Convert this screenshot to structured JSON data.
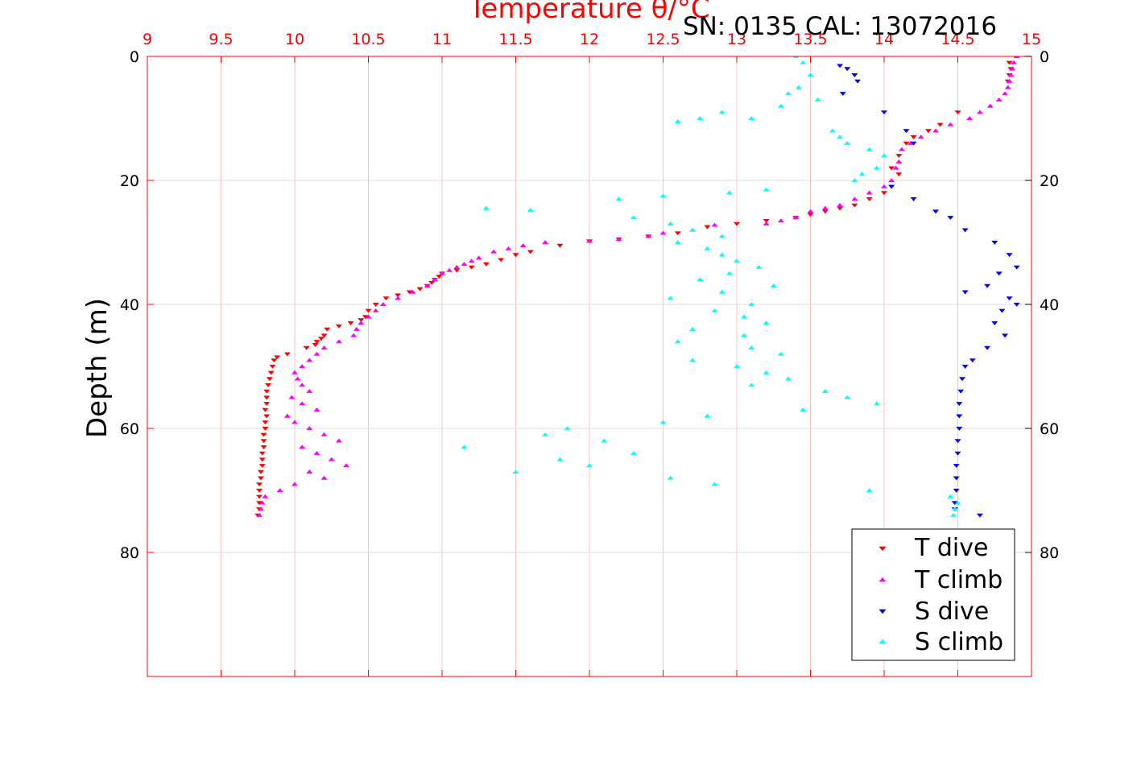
{
  "chart_data": {
    "type": "scatter",
    "title": "Temperature θ/°C",
    "annotation": "SN: 0135  CAL: 13072016",
    "xlabel": "Temperature θ/°C",
    "ylabel": "Depth (m)",
    "xlim": [
      9,
      15
    ],
    "ylim": [
      0,
      100
    ],
    "y_reversed": true,
    "x_ticks": [
      "9",
      "9.5",
      "10",
      "10.5",
      "11",
      "11.5",
      "12",
      "12.5",
      "13",
      "13.5",
      "14",
      "14.5",
      "15"
    ],
    "y_ticks_left": [
      "0",
      "20",
      "40",
      "60",
      "80"
    ],
    "y_ticks_right": [
      "0",
      "20",
      "40",
      "60",
      "80"
    ],
    "grid": true,
    "legend_position": "bottom-right",
    "colors": {
      "T dive": "#ff0000",
      "T climb": "#ff00ff",
      "S dive": "#0000ff",
      "S climb": "#00ffff",
      "axis": "#ff0000"
    },
    "series": [
      {
        "name": "T dive",
        "marker": "triangle-down",
        "points": [
          [
            14.85,
            1
          ],
          [
            14.86,
            2
          ],
          [
            14.85,
            3
          ],
          [
            14.84,
            4
          ],
          [
            14.5,
            9
          ],
          [
            14.38,
            11
          ],
          [
            14.3,
            12
          ],
          [
            14.2,
            13
          ],
          [
            14.15,
            14
          ],
          [
            14.1,
            16
          ],
          [
            14.05,
            18
          ],
          [
            14.1,
            19
          ],
          [
            14.05,
            21
          ],
          [
            14.0,
            22
          ],
          [
            13.9,
            23
          ],
          [
            13.8,
            24
          ],
          [
            13.7,
            24.5
          ],
          [
            13.6,
            25
          ],
          [
            13.5,
            25.5
          ],
          [
            13.4,
            26
          ],
          [
            13.2,
            26.5
          ],
          [
            13.0,
            27
          ],
          [
            12.8,
            27.5
          ],
          [
            12.6,
            28.5
          ],
          [
            12.4,
            29
          ],
          [
            12.2,
            29.5
          ],
          [
            12.0,
            29.8
          ],
          [
            11.8,
            30.5
          ],
          [
            11.6,
            31.5
          ],
          [
            11.5,
            32
          ],
          [
            11.4,
            32.8
          ],
          [
            11.3,
            33.5
          ],
          [
            11.2,
            34
          ],
          [
            11.1,
            34.5
          ],
          [
            11.0,
            35
          ],
          [
            10.98,
            35.5
          ],
          [
            10.95,
            36
          ],
          [
            10.93,
            36.5
          ],
          [
            10.9,
            37
          ],
          [
            10.85,
            37.5
          ],
          [
            10.78,
            38
          ],
          [
            10.7,
            38.5
          ],
          [
            10.62,
            39
          ],
          [
            10.55,
            40
          ],
          [
            10.5,
            41
          ],
          [
            10.48,
            42
          ],
          [
            10.45,
            42.5
          ],
          [
            10.38,
            43
          ],
          [
            10.3,
            43.5
          ],
          [
            10.22,
            44
          ],
          [
            10.2,
            45
          ],
          [
            10.18,
            45.5
          ],
          [
            10.15,
            46
          ],
          [
            10.14,
            46.5
          ],
          [
            10.08,
            47
          ],
          [
            9.95,
            48
          ],
          [
            9.88,
            48.5
          ],
          [
            9.86,
            49
          ],
          [
            9.85,
            50
          ],
          [
            9.84,
            51
          ],
          [
            9.83,
            52
          ],
          [
            9.82,
            53
          ],
          [
            9.81,
            54
          ],
          [
            9.81,
            55
          ],
          [
            9.81,
            56
          ],
          [
            9.8,
            57
          ],
          [
            9.81,
            58
          ],
          [
            9.8,
            59
          ],
          [
            9.8,
            60
          ],
          [
            9.79,
            61
          ],
          [
            9.79,
            62
          ],
          [
            9.79,
            63
          ],
          [
            9.78,
            64
          ],
          [
            9.78,
            65
          ],
          [
            9.78,
            66
          ],
          [
            9.77,
            67
          ],
          [
            9.77,
            68
          ],
          [
            9.76,
            69
          ],
          [
            9.76,
            70
          ],
          [
            9.76,
            71
          ],
          [
            9.76,
            72
          ],
          [
            9.76,
            73
          ],
          [
            9.75,
            74
          ]
        ]
      },
      {
        "name": "T climb",
        "marker": "triangle-up",
        "points": [
          [
            14.9,
            0
          ],
          [
            14.88,
            1
          ],
          [
            14.87,
            2
          ],
          [
            14.86,
            3
          ],
          [
            14.85,
            4
          ],
          [
            14.84,
            5
          ],
          [
            14.82,
            6
          ],
          [
            14.78,
            7
          ],
          [
            14.72,
            8
          ],
          [
            14.65,
            9
          ],
          [
            14.58,
            10
          ],
          [
            14.45,
            11
          ],
          [
            14.35,
            12
          ],
          [
            14.25,
            13
          ],
          [
            14.18,
            14
          ],
          [
            14.12,
            15
          ],
          [
            14.1,
            17
          ],
          [
            14.08,
            18
          ],
          [
            14.05,
            20
          ],
          [
            14.0,
            21
          ],
          [
            13.9,
            22
          ],
          [
            13.8,
            23
          ],
          [
            13.7,
            24
          ],
          [
            13.6,
            24.5
          ],
          [
            13.5,
            25
          ],
          [
            13.4,
            26
          ],
          [
            13.3,
            26.5
          ],
          [
            13.2,
            27
          ],
          [
            12.85,
            27.2
          ],
          [
            12.5,
            28.5
          ],
          [
            12.4,
            29
          ],
          [
            12.2,
            29.5
          ],
          [
            12.0,
            29.8
          ],
          [
            11.7,
            30
          ],
          [
            11.55,
            30.5
          ],
          [
            11.45,
            31
          ],
          [
            11.35,
            31.5
          ],
          [
            11.25,
            32.5
          ],
          [
            11.2,
            33
          ],
          [
            11.15,
            33.5
          ],
          [
            11.1,
            34
          ],
          [
            11.05,
            34.5
          ],
          [
            11.0,
            35
          ],
          [
            10.95,
            36
          ],
          [
            10.9,
            37
          ],
          [
            10.8,
            38
          ],
          [
            10.7,
            39
          ],
          [
            10.6,
            40
          ],
          [
            10.55,
            41
          ],
          [
            10.5,
            42
          ],
          [
            10.45,
            43
          ],
          [
            10.42,
            44
          ],
          [
            10.4,
            45
          ],
          [
            10.3,
            46
          ],
          [
            10.2,
            47
          ],
          [
            10.15,
            48
          ],
          [
            10.1,
            49
          ],
          [
            10.05,
            50
          ],
          [
            10.0,
            51
          ],
          [
            10.02,
            52
          ],
          [
            10.05,
            53
          ],
          [
            10.1,
            54
          ],
          [
            9.98,
            55
          ],
          [
            10.05,
            56
          ],
          [
            10.15,
            57
          ],
          [
            9.95,
            58
          ],
          [
            10.0,
            59
          ],
          [
            10.1,
            60
          ],
          [
            10.2,
            61
          ],
          [
            10.3,
            62
          ],
          [
            10.05,
            63
          ],
          [
            10.15,
            64
          ],
          [
            10.25,
            65
          ],
          [
            10.35,
            66
          ],
          [
            10.1,
            67
          ],
          [
            10.2,
            68
          ],
          [
            10.0,
            69
          ],
          [
            9.9,
            70
          ],
          [
            9.8,
            71
          ],
          [
            9.78,
            72
          ],
          [
            9.77,
            73
          ],
          [
            9.76,
            74
          ]
        ]
      },
      {
        "name": "S dive",
        "marker": "triangle-down",
        "points": [
          [
            13.75,
            2
          ],
          [
            13.8,
            3
          ],
          [
            13.7,
            1.5
          ],
          [
            13.82,
            4
          ],
          [
            13.72,
            6
          ],
          [
            14.0,
            9
          ],
          [
            14.15,
            12
          ],
          [
            14.2,
            14
          ],
          [
            14.05,
            21
          ],
          [
            14.2,
            23
          ],
          [
            14.35,
            25
          ],
          [
            14.45,
            26
          ],
          [
            14.55,
            28
          ],
          [
            14.75,
            30
          ],
          [
            14.85,
            32
          ],
          [
            14.9,
            34
          ],
          [
            14.78,
            35
          ],
          [
            14.7,
            37
          ],
          [
            14.55,
            38
          ],
          [
            14.85,
            39
          ],
          [
            14.9,
            40
          ],
          [
            14.8,
            41
          ],
          [
            14.75,
            43
          ],
          [
            14.82,
            45
          ],
          [
            14.7,
            47
          ],
          [
            14.6,
            49
          ],
          [
            14.55,
            50
          ],
          [
            14.53,
            52
          ],
          [
            14.52,
            54
          ],
          [
            14.51,
            56
          ],
          [
            14.51,
            58
          ],
          [
            14.51,
            60
          ],
          [
            14.5,
            62
          ],
          [
            14.5,
            64
          ],
          [
            14.49,
            66
          ],
          [
            14.49,
            68
          ],
          [
            14.49,
            70
          ],
          [
            14.48,
            72
          ],
          [
            14.48,
            73
          ],
          [
            14.65,
            74
          ]
        ]
      },
      {
        "name": "S climb",
        "marker": "triangle-up",
        "points": [
          [
            13.4,
            0
          ],
          [
            13.45,
            1
          ],
          [
            13.5,
            3
          ],
          [
            13.42,
            5
          ],
          [
            13.35,
            6
          ],
          [
            13.55,
            7
          ],
          [
            13.3,
            8
          ],
          [
            12.9,
            9
          ],
          [
            13.1,
            10
          ],
          [
            12.6,
            10.5
          ],
          [
            12.75,
            10
          ],
          [
            13.65,
            12
          ],
          [
            13.7,
            13
          ],
          [
            13.75,
            14
          ],
          [
            13.9,
            15
          ],
          [
            14.0,
            16
          ],
          [
            13.95,
            18
          ],
          [
            13.85,
            19
          ],
          [
            13.8,
            20
          ],
          [
            13.2,
            21.5
          ],
          [
            12.95,
            22
          ],
          [
            12.5,
            22.5
          ],
          [
            12.2,
            23
          ],
          [
            11.3,
            24.5
          ],
          [
            11.6,
            24.8
          ],
          [
            12.3,
            26
          ],
          [
            12.55,
            27
          ],
          [
            12.7,
            28
          ],
          [
            12.9,
            29
          ],
          [
            12.6,
            30
          ],
          [
            12.8,
            31
          ],
          [
            12.9,
            32
          ],
          [
            13.0,
            33
          ],
          [
            13.15,
            34
          ],
          [
            12.95,
            35
          ],
          [
            12.75,
            36
          ],
          [
            13.25,
            37
          ],
          [
            12.9,
            38
          ],
          [
            12.55,
            39
          ],
          [
            13.1,
            40
          ],
          [
            12.85,
            41
          ],
          [
            13.05,
            42
          ],
          [
            13.2,
            43
          ],
          [
            12.7,
            44
          ],
          [
            13.05,
            45
          ],
          [
            12.6,
            46
          ],
          [
            13.1,
            47
          ],
          [
            13.3,
            48
          ],
          [
            12.7,
            49
          ],
          [
            13.0,
            50
          ],
          [
            13.2,
            51
          ],
          [
            13.35,
            52
          ],
          [
            13.1,
            53
          ],
          [
            13.6,
            54
          ],
          [
            13.75,
            55
          ],
          [
            13.95,
            56
          ],
          [
            13.45,
            57
          ],
          [
            12.8,
            58
          ],
          [
            12.5,
            59
          ],
          [
            11.85,
            60
          ],
          [
            11.7,
            61
          ],
          [
            12.1,
            62
          ],
          [
            11.15,
            63
          ],
          [
            12.3,
            64
          ],
          [
            11.8,
            65
          ],
          [
            12.0,
            66
          ],
          [
            11.5,
            67
          ],
          [
            12.55,
            68
          ],
          [
            12.85,
            69
          ],
          [
            13.9,
            70
          ],
          [
            14.45,
            71
          ],
          [
            14.5,
            72
          ],
          [
            14.48,
            73
          ],
          [
            14.47,
            74
          ]
        ]
      }
    ]
  }
}
